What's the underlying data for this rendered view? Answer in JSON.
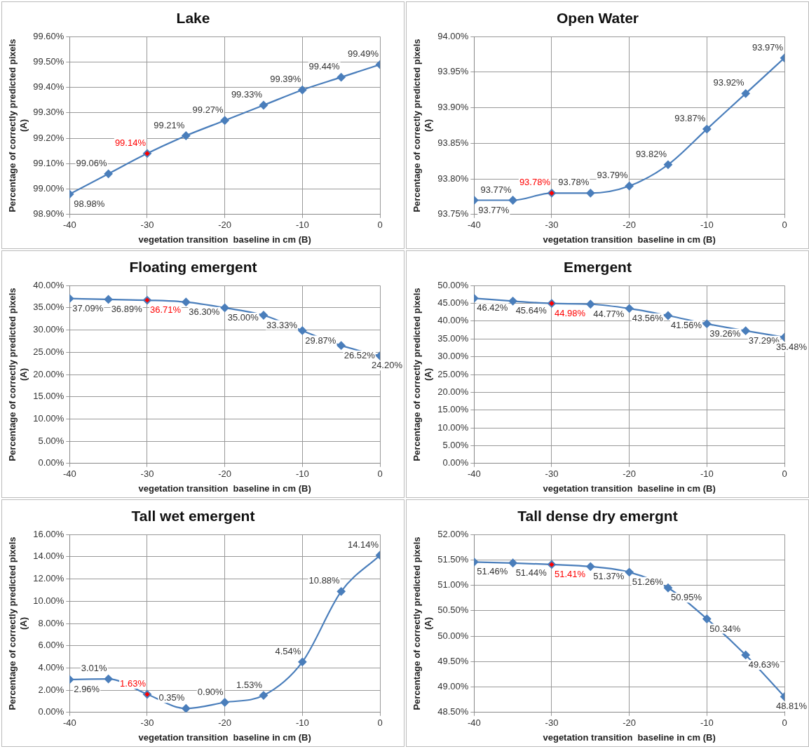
{
  "chart_data": [
    {
      "type": "line",
      "title": "Lake",
      "xlabel": "vegetation transition  baseline in cm (B)",
      "ylabel": "Percentage of correctly predicted pixels (A)",
      "x": [
        -40,
        -35,
        -30,
        -25,
        -20,
        -15,
        -10,
        -5,
        0
      ],
      "xlim": [
        -40,
        0
      ],
      "xticks": [
        -40,
        -30,
        -20,
        -10,
        0
      ],
      "ylim": [
        98.9,
        99.6
      ],
      "yticks": [
        {
          "value": 98.9,
          "label": "98.90%"
        },
        {
          "value": 99.0,
          "label": "99.00%"
        },
        {
          "value": 99.1,
          "label": "99.10%"
        },
        {
          "value": 99.2,
          "label": "99.20%"
        },
        {
          "value": 99.3,
          "label": "99.30%"
        },
        {
          "value": 99.4,
          "label": "99.40%"
        },
        {
          "value": 99.5,
          "label": "99.50%"
        },
        {
          "value": 99.6,
          "label": "99.60%"
        }
      ],
      "grid": true,
      "legend": false,
      "marker": "diamond",
      "line_style": "solid",
      "series": [
        {
          "color": "#4a7ebb",
          "values": [
            98.98,
            99.06,
            99.14,
            99.21,
            99.27,
            99.33,
            99.39,
            99.44,
            99.49
          ],
          "colors": [
            "#4a7ebb",
            "#4a7ebb",
            "#ff0000",
            "#4a7ebb",
            "#4a7ebb",
            "#4a7ebb",
            "#4a7ebb",
            "#4a7ebb",
            "#4a7ebb"
          ],
          "value_labels": [
            "98.98%",
            "99.06%",
            "99.14%",
            "99.21%",
            "99.27%",
            "99.33%",
            "99.39%",
            "99.44%",
            "99.49%"
          ]
        }
      ]
    },
    {
      "type": "line",
      "title": "Open Water",
      "xlabel": "vegetation transition  baseline in cm (B)",
      "ylabel": "Percentage of correctly predicted pixels (A)",
      "x": [
        -40,
        -35,
        -30,
        -25,
        -20,
        -15,
        -10,
        -5,
        0
      ],
      "xlim": [
        -40,
        0
      ],
      "xticks": [
        -40,
        -30,
        -20,
        -10,
        0
      ],
      "ylim": [
        93.75,
        94.0
      ],
      "yticks": [
        {
          "value": 93.75,
          "label": "93.75%"
        },
        {
          "value": 93.8,
          "label": "93.80%"
        },
        {
          "value": 93.85,
          "label": "93.85%"
        },
        {
          "value": 93.9,
          "label": "93.90%"
        },
        {
          "value": 93.95,
          "label": "93.95%"
        },
        {
          "value": 94.0,
          "label": "94.00%"
        }
      ],
      "grid": true,
      "legend": false,
      "marker": "diamond",
      "line_style": "solid",
      "series": [
        {
          "color": "#4a7ebb",
          "values": [
            93.77,
            93.77,
            93.78,
            93.78,
            93.79,
            93.82,
            93.87,
            93.92,
            93.97
          ],
          "colors": [
            "#4a7ebb",
            "#4a7ebb",
            "#ff0000",
            "#4a7ebb",
            "#4a7ebb",
            "#4a7ebb",
            "#4a7ebb",
            "#4a7ebb",
            "#4a7ebb"
          ],
          "value_labels": [
            "93.77%",
            "93.77%",
            "93.78%",
            "93.78%",
            "93.79%",
            "93.82%",
            "93.87%",
            "93.92%",
            "93.97%"
          ]
        }
      ]
    },
    {
      "type": "line",
      "title": "Floating emergent",
      "xlabel": "vegetation transition  baseline in cm (B)",
      "ylabel": "Percentage of correctly predicted pixels (A)",
      "x": [
        -40,
        -35,
        -30,
        -25,
        -20,
        -15,
        -10,
        -5,
        0
      ],
      "xlim": [
        -40,
        0
      ],
      "xticks": [
        -40,
        -30,
        -20,
        -10,
        0
      ],
      "ylim": [
        0,
        40
      ],
      "yticks": [
        {
          "value": 0,
          "label": "0.00%"
        },
        {
          "value": 5,
          "label": "5.00%"
        },
        {
          "value": 10,
          "label": "10.00%"
        },
        {
          "value": 15,
          "label": "15.00%"
        },
        {
          "value": 20,
          "label": "20.00%"
        },
        {
          "value": 25,
          "label": "25.00%"
        },
        {
          "value": 30,
          "label": "30.00%"
        },
        {
          "value": 35,
          "label": "35.00%"
        },
        {
          "value": 40,
          "label": "40.00%"
        }
      ],
      "grid": true,
      "legend": false,
      "marker": "diamond",
      "line_style": "solid",
      "series": [
        {
          "color": "#4a7ebb",
          "values": [
            37.09,
            36.89,
            36.71,
            36.3,
            35.0,
            33.33,
            29.87,
            26.52,
            24.2
          ],
          "colors": [
            "#4a7ebb",
            "#4a7ebb",
            "#ff0000",
            "#4a7ebb",
            "#4a7ebb",
            "#4a7ebb",
            "#4a7ebb",
            "#4a7ebb",
            "#4a7ebb"
          ],
          "value_labels": [
            "37.09%",
            "36.89%",
            "36.71%",
            "36.30%",
            "35.00%",
            "33.33%",
            "29.87%",
            "26.52%",
            "24.20%"
          ]
        }
      ]
    },
    {
      "type": "line",
      "title": "Emergent",
      "xlabel": "vegetation transition  baseline in cm (B)",
      "ylabel": "Percentage of correctly predicted pixels (A)",
      "x": [
        -40,
        -35,
        -30,
        -25,
        -20,
        -15,
        -10,
        -5,
        0
      ],
      "xlim": [
        -40,
        0
      ],
      "xticks": [
        -40,
        -30,
        -20,
        -10,
        0
      ],
      "ylim": [
        0,
        50
      ],
      "yticks": [
        {
          "value": 0,
          "label": "0.00%"
        },
        {
          "value": 5,
          "label": "5.00%"
        },
        {
          "value": 10,
          "label": "10.00%"
        },
        {
          "value": 15,
          "label": "15.00%"
        },
        {
          "value": 20,
          "label": "20.00%"
        },
        {
          "value": 25,
          "label": "25.00%"
        },
        {
          "value": 30,
          "label": "30.00%"
        },
        {
          "value": 35,
          "label": "35.00%"
        },
        {
          "value": 40,
          "label": "40.00%"
        },
        {
          "value": 45,
          "label": "45.00%"
        },
        {
          "value": 50,
          "label": "50.00%"
        }
      ],
      "grid": true,
      "legend": false,
      "marker": "diamond",
      "line_style": "solid",
      "series": [
        {
          "color": "#4a7ebb",
          "values": [
            46.42,
            45.64,
            44.98,
            44.77,
            43.56,
            41.56,
            39.26,
            37.29,
            35.48
          ],
          "colors": [
            "#4a7ebb",
            "#4a7ebb",
            "#ff0000",
            "#4a7ebb",
            "#4a7ebb",
            "#4a7ebb",
            "#4a7ebb",
            "#4a7ebb",
            "#4a7ebb"
          ],
          "value_labels": [
            "46.42%",
            "45.64%",
            "44.98%",
            "44.77%",
            "43.56%",
            "41.56%",
            "39.26%",
            "37.29%",
            "35.48%"
          ]
        }
      ]
    },
    {
      "type": "line",
      "title": "Tall wet emergent",
      "xlabel": "vegetation transition  baseline in cm (B)",
      "ylabel": "Percentage of correctly predicted pixels (A)",
      "x": [
        -40,
        -35,
        -30,
        -25,
        -20,
        -15,
        -10,
        -5,
        0
      ],
      "xlim": [
        -40,
        0
      ],
      "xticks": [
        -40,
        -30,
        -20,
        -10,
        0
      ],
      "ylim": [
        0,
        16
      ],
      "yticks": [
        {
          "value": 0,
          "label": "0.00%"
        },
        {
          "value": 2,
          "label": "2.00%"
        },
        {
          "value": 4,
          "label": "4.00%"
        },
        {
          "value": 6,
          "label": "6.00%"
        },
        {
          "value": 8,
          "label": "8.00%"
        },
        {
          "value": 10,
          "label": "10.00%"
        },
        {
          "value": 12,
          "label": "12.00%"
        },
        {
          "value": 14,
          "label": "14.00%"
        },
        {
          "value": 16,
          "label": "16.00%"
        }
      ],
      "grid": true,
      "legend": false,
      "marker": "diamond",
      "line_style": "solid",
      "series": [
        {
          "color": "#4a7ebb",
          "values": [
            2.96,
            3.01,
            1.63,
            0.35,
            0.9,
            1.53,
            4.54,
            10.88,
            14.14
          ],
          "colors": [
            "#4a7ebb",
            "#4a7ebb",
            "#ff0000",
            "#4a7ebb",
            "#4a7ebb",
            "#4a7ebb",
            "#4a7ebb",
            "#4a7ebb",
            "#4a7ebb"
          ],
          "value_labels": [
            "2.96%",
            "3.01%",
            "1.63%",
            "0.35%",
            "0.90%",
            "1.53%",
            "4.54%",
            "10.88%",
            "14.14%"
          ]
        }
      ]
    },
    {
      "type": "line",
      "title": "Tall dense dry emergnt",
      "xlabel": "vegetation transition  baseline in cm (B)",
      "ylabel": "Percentage of correctly predicted pixels (A)",
      "x": [
        -40,
        -35,
        -30,
        -25,
        -20,
        -15,
        -10,
        -5,
        0
      ],
      "xlim": [
        -40,
        0
      ],
      "xticks": [
        -40,
        -30,
        -20,
        -10,
        0
      ],
      "ylim": [
        48.5,
        52
      ],
      "yticks": [
        {
          "value": 48.5,
          "label": "48.50%"
        },
        {
          "value": 49,
          "label": "49.00%"
        },
        {
          "value": 49.5,
          "label": "49.50%"
        },
        {
          "value": 50,
          "label": "50.00%"
        },
        {
          "value": 50.5,
          "label": "50.50%"
        },
        {
          "value": 51,
          "label": "51.00%"
        },
        {
          "value": 51.5,
          "label": "51.50%"
        },
        {
          "value": 52,
          "label": "52.00%"
        }
      ],
      "grid": true,
      "legend": false,
      "marker": "diamond",
      "line_style": "solid",
      "series": [
        {
          "color": "#4a7ebb",
          "values": [
            51.46,
            51.44,
            51.41,
            51.37,
            51.26,
            50.95,
            50.34,
            49.63,
            48.81
          ],
          "colors": [
            "#4a7ebb",
            "#4a7ebb",
            "#ff0000",
            "#4a7ebb",
            "#4a7ebb",
            "#4a7ebb",
            "#4a7ebb",
            "#4a7ebb",
            "#4a7ebb"
          ],
          "value_labels": [
            "51.46%",
            "51.44%",
            "51.41%",
            "51.37%",
            "51.26%",
            "50.95%",
            "50.34%",
            "49.63%",
            "48.81%"
          ]
        }
      ]
    }
  ]
}
